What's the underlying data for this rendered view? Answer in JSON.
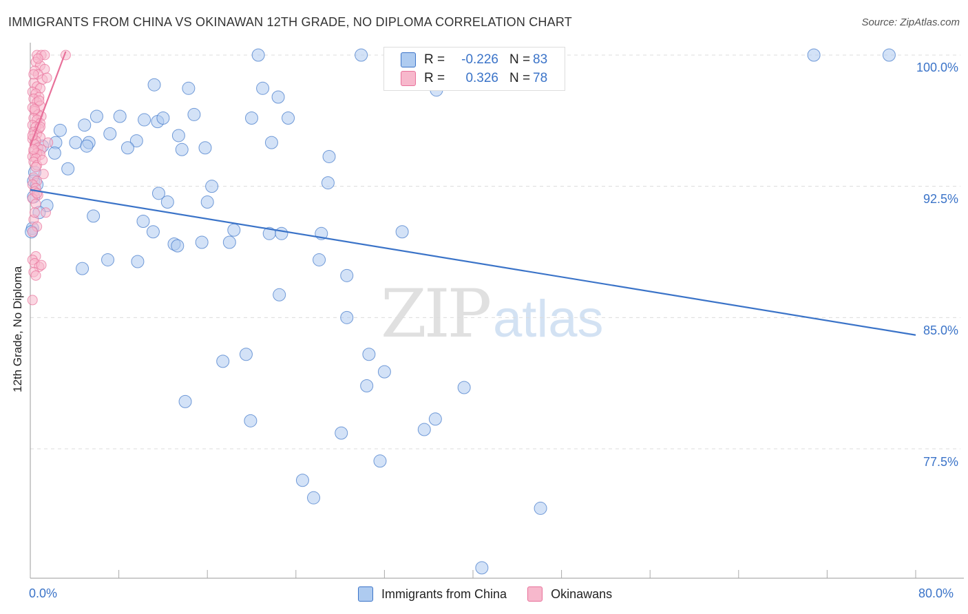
{
  "title": "IMMIGRANTS FROM CHINA VS OKINAWAN 12TH GRADE, NO DIPLOMA CORRELATION CHART",
  "source": "Source: ZipAtlas.com",
  "watermark": {
    "zip": "ZIP",
    "atlas": "atlas"
  },
  "legend": {
    "rows": [
      {
        "r_label": "R =",
        "r_value": "-0.226",
        "n_label": "N =",
        "n_value": "83"
      },
      {
        "r_label": "R =",
        "r_value": "0.326",
        "n_label": "N =",
        "n_value": "78"
      }
    ]
  },
  "bottom_legend": [
    "Immigrants from China",
    "Okinawans"
  ],
  "x_tick_labels": [
    "0.0%",
    "80.0%"
  ],
  "y_tick_labels": [
    "100.0%",
    "92.5%",
    "85.0%",
    "77.5%"
  ],
  "colors": {
    "blue": "#3a73c8",
    "blue_fill": "#aecbf0",
    "pink": "#e8709a",
    "pink_fill": "#f7b8cc"
  },
  "chart_data": {
    "type": "scatter",
    "title": "IMMIGRANTS FROM CHINA VS OKINAWAN 12TH GRADE, NO DIPLOMA CORRELATION CHART",
    "xlabel": "",
    "ylabel": "12th Grade, No Diploma",
    "xlim": [
      0,
      80
    ],
    "ylim": [
      70.5,
      101.5
    ],
    "yticks": [
      100.0,
      92.5,
      85.0,
      77.5
    ],
    "grid": true,
    "legend_position": "top-center",
    "series": [
      {
        "name": "Immigrants from China",
        "color": "#3a73c8",
        "r": -0.226,
        "n": 83,
        "trend": [
          [
            0,
            92.3
          ],
          [
            80,
            84.0
          ]
        ],
        "points": [
          [
            20.6,
            100.0
          ],
          [
            29.9,
            100.0
          ],
          [
            32.8,
            100.0
          ],
          [
            70.8,
            100.0
          ],
          [
            77.6,
            100.0
          ],
          [
            11.2,
            98.3
          ],
          [
            14.3,
            98.1
          ],
          [
            21.0,
            98.1
          ],
          [
            22.4,
            97.6
          ],
          [
            36.7,
            98.0
          ],
          [
            6.0,
            96.5
          ],
          [
            8.1,
            96.5
          ],
          [
            10.3,
            96.3
          ],
          [
            11.5,
            96.2
          ],
          [
            12.0,
            96.4
          ],
          [
            14.8,
            96.6
          ],
          [
            20.0,
            96.4
          ],
          [
            23.3,
            96.4
          ],
          [
            4.9,
            96.0
          ],
          [
            2.7,
            95.7
          ],
          [
            7.2,
            95.5
          ],
          [
            9.6,
            95.1
          ],
          [
            2.3,
            95.0
          ],
          [
            4.1,
            95.0
          ],
          [
            5.3,
            95.0
          ],
          [
            5.1,
            94.8
          ],
          [
            13.4,
            95.4
          ],
          [
            21.8,
            95.0
          ],
          [
            1.1,
            94.8
          ],
          [
            2.2,
            94.4
          ],
          [
            8.8,
            94.7
          ],
          [
            13.7,
            94.6
          ],
          [
            15.8,
            94.7
          ],
          [
            27.0,
            94.2
          ],
          [
            3.4,
            93.5
          ],
          [
            0.4,
            93.3
          ],
          [
            26.9,
            92.7
          ],
          [
            16.4,
            92.5
          ],
          [
            11.6,
            92.1
          ],
          [
            12.4,
            91.6
          ],
          [
            16.0,
            91.6
          ],
          [
            1.5,
            91.4
          ],
          [
            5.7,
            90.8
          ],
          [
            10.2,
            90.5
          ],
          [
            11.1,
            89.9
          ],
          [
            18.4,
            90.0
          ],
          [
            21.6,
            89.8
          ],
          [
            22.7,
            89.8
          ],
          [
            26.3,
            89.8
          ],
          [
            13.0,
            89.2
          ],
          [
            13.3,
            89.1
          ],
          [
            15.5,
            89.3
          ],
          [
            18.0,
            89.3
          ],
          [
            33.6,
            89.9
          ],
          [
            7.0,
            88.3
          ],
          [
            9.7,
            88.2
          ],
          [
            26.1,
            88.3
          ],
          [
            4.7,
            87.8
          ],
          [
            28.6,
            87.4
          ],
          [
            22.5,
            86.3
          ],
          [
            28.6,
            85.0
          ],
          [
            19.5,
            82.9
          ],
          [
            30.6,
            82.9
          ],
          [
            17.4,
            82.5
          ],
          [
            32.0,
            81.9
          ],
          [
            30.4,
            81.1
          ],
          [
            39.2,
            81.0
          ],
          [
            14.0,
            80.2
          ],
          [
            19.9,
            79.1
          ],
          [
            36.6,
            79.2
          ],
          [
            35.6,
            78.6
          ],
          [
            28.1,
            78.4
          ],
          [
            31.6,
            76.8
          ],
          [
            24.6,
            75.7
          ],
          [
            25.6,
            74.7
          ],
          [
            46.1,
            74.1
          ],
          [
            40.8,
            70.7
          ],
          [
            0.3,
            92.8
          ],
          [
            0.3,
            91.9
          ],
          [
            0.2,
            90.1
          ],
          [
            0.6,
            92.6
          ],
          [
            0.8,
            91.0
          ],
          [
            0.1,
            89.9
          ]
        ]
      },
      {
        "name": "Okinawans",
        "color": "#e8709a",
        "r": 0.326,
        "n": 78,
        "trend": [
          [
            0.0,
            94.8
          ],
          [
            3.2,
            100.2
          ]
        ],
        "points": [
          [
            0.6,
            100.0
          ],
          [
            1.0,
            100.0
          ],
          [
            1.3,
            100.0
          ],
          [
            3.2,
            100.0
          ],
          [
            0.5,
            99.6
          ],
          [
            0.9,
            99.4
          ],
          [
            1.3,
            99.2
          ],
          [
            0.4,
            99.1
          ],
          [
            0.7,
            98.9
          ],
          [
            1.1,
            98.6
          ],
          [
            1.5,
            98.7
          ],
          [
            0.3,
            98.4
          ],
          [
            0.6,
            98.2
          ],
          [
            0.9,
            98.1
          ],
          [
            0.2,
            97.9
          ],
          [
            0.5,
            97.8
          ],
          [
            0.8,
            97.6
          ],
          [
            0.3,
            97.5
          ],
          [
            0.6,
            97.3
          ],
          [
            0.9,
            97.1
          ],
          [
            0.2,
            97.0
          ],
          [
            0.4,
            96.8
          ],
          [
            0.7,
            96.6
          ],
          [
            1.0,
            96.5
          ],
          [
            0.3,
            96.4
          ],
          [
            0.6,
            96.3
          ],
          [
            0.9,
            96.1
          ],
          [
            0.2,
            96.0
          ],
          [
            0.5,
            95.9
          ],
          [
            0.8,
            95.8
          ],
          [
            0.3,
            95.6
          ],
          [
            0.6,
            95.5
          ],
          [
            0.9,
            95.3
          ],
          [
            0.2,
            95.2
          ],
          [
            0.5,
            95.1
          ],
          [
            1.6,
            95.0
          ],
          [
            0.4,
            94.9
          ],
          [
            0.7,
            94.7
          ],
          [
            1.0,
            94.6
          ],
          [
            0.3,
            94.5
          ],
          [
            0.6,
            94.4
          ],
          [
            0.9,
            94.3
          ],
          [
            0.2,
            94.2
          ],
          [
            0.5,
            94.1
          ],
          [
            0.3,
            93.9
          ],
          [
            0.6,
            93.7
          ],
          [
            1.2,
            93.2
          ],
          [
            0.3,
            93.0
          ],
          [
            0.6,
            92.8
          ],
          [
            0.2,
            92.6
          ],
          [
            0.5,
            92.4
          ],
          [
            0.4,
            92.2
          ],
          [
            0.7,
            92.0
          ],
          [
            0.2,
            91.8
          ],
          [
            0.5,
            91.5
          ],
          [
            1.4,
            91.0
          ],
          [
            0.3,
            90.6
          ],
          [
            0.6,
            90.2
          ],
          [
            0.2,
            89.9
          ],
          [
            0.5,
            88.5
          ],
          [
            0.2,
            88.3
          ],
          [
            0.4,
            88.1
          ],
          [
            0.8,
            87.9
          ],
          [
            1.0,
            88.0
          ],
          [
            0.3,
            87.6
          ],
          [
            0.5,
            87.4
          ],
          [
            0.2,
            86.0
          ],
          [
            0.4,
            96.9
          ],
          [
            0.8,
            97.4
          ],
          [
            1.1,
            94.0
          ],
          [
            0.3,
            98.9
          ],
          [
            0.7,
            99.8
          ],
          [
            0.2,
            95.4
          ],
          [
            0.5,
            93.6
          ],
          [
            0.9,
            95.9
          ],
          [
            0.4,
            91.0
          ],
          [
            0.6,
            92.1
          ],
          [
            0.3,
            94.6
          ]
        ]
      }
    ]
  }
}
